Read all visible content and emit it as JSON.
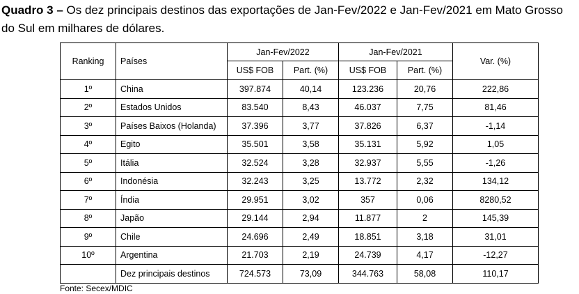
{
  "caption": {
    "label": "Quadro 3 –",
    "text": " Os dez principais destinos das exportações de Jan-Fev/2022 e Jan-Fev/2021 em Mato Grosso do Sul em milhares de dólares."
  },
  "table": {
    "headers": {
      "ranking": "Ranking",
      "paises": "Países",
      "period_2022": "Jan-Fev/2022",
      "period_2021": "Jan-Fev/2021",
      "var": "Var. (%)",
      "usd_2022": "US$ FOB",
      "part_2022": "Part. (%)",
      "usd_2021": "US$ FOB",
      "part_2021": "Part. (%)"
    },
    "rows": [
      {
        "rank": "1º",
        "country": "China",
        "usd22": "397.874",
        "part22": "40,14",
        "usd21": "123.236",
        "part21": "20,76",
        "var": "222,86"
      },
      {
        "rank": "2º",
        "country": "Estados Unidos",
        "usd22": "83.540",
        "part22": "8,43",
        "usd21": "46.037",
        "part21": "7,75",
        "var": "81,46"
      },
      {
        "rank": "3º",
        "country": "Países Baixos (Holanda)",
        "usd22": "37.396",
        "part22": "3,77",
        "usd21": "37.826",
        "part21": "6,37",
        "var": "-1,14"
      },
      {
        "rank": "4º",
        "country": "Egito",
        "usd22": "35.501",
        "part22": "3,58",
        "usd21": "35.131",
        "part21": "5,92",
        "var": "1,05"
      },
      {
        "rank": "5º",
        "country": "Itália",
        "usd22": "32.524",
        "part22": "3,28",
        "usd21": "32.937",
        "part21": "5,55",
        "var": "-1,26"
      },
      {
        "rank": "6º",
        "country": "Indonésia",
        "usd22": "32.243",
        "part22": "3,25",
        "usd21": "13.772",
        "part21": "2,32",
        "var": "134,12"
      },
      {
        "rank": "7º",
        "country": "Índia",
        "usd22": "29.951",
        "part22": "3,02",
        "usd21": "357",
        "part21": "0,06",
        "var": "8280,52"
      },
      {
        "rank": "8º",
        "country": "Japão",
        "usd22": "29.144",
        "part22": "2,94",
        "usd21": "11.877",
        "part21": "2",
        "var": "145,39"
      },
      {
        "rank": "9º",
        "country": "Chile",
        "usd22": "24.696",
        "part22": "2,49",
        "usd21": "18.851",
        "part21": "3,18",
        "var": "31,01"
      },
      {
        "rank": "10º",
        "country": "Argentina",
        "usd22": "21.703",
        "part22": "2,19",
        "usd21": "24.739",
        "part21": "4,17",
        "var": "-12,27"
      }
    ],
    "total": {
      "rank": "",
      "country": "Dez principais destinos",
      "usd22": "724.573",
      "part22": "73,09",
      "usd21": "344.763",
      "part21": "58,08",
      "var": "110,17"
    }
  },
  "source": "Fonte: Secex/MDIC"
}
